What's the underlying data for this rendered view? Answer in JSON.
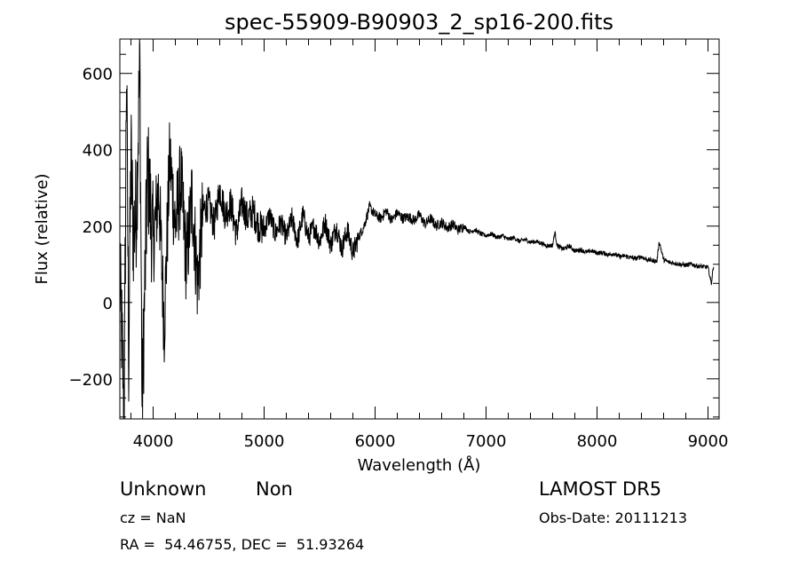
{
  "chart_data": {
    "type": "line",
    "title": "spec-55909-B90903_2_sp16-200.fits",
    "xlabel": "Wavelength (Å)",
    "ylabel": "Flux (relative)",
    "xlim": [
      3700,
      9100
    ],
    "ylim": [
      -305,
      690
    ],
    "x_ticks": [
      4000,
      5000,
      6000,
      7000,
      8000,
      9000
    ],
    "y_ticks": [
      -200,
      0,
      200,
      400,
      600
    ],
    "grid": false,
    "line_color": "#000000",
    "series": [
      {
        "x": [
          3700,
          3740,
          3760,
          3780,
          3800,
          3820,
          3850,
          3880,
          3900,
          3950,
          4000,
          4050,
          4100,
          4150,
          4200,
          4250,
          4300,
          4350,
          4400,
          4450,
          4500,
          4550,
          4600,
          4650,
          4700,
          4750,
          4800,
          4850,
          4900,
          4950,
          5000,
          5050,
          5100,
          5150,
          5200,
          5250,
          5300,
          5350,
          5400,
          5450,
          5500,
          5550,
          5600,
          5650,
          5700,
          5750,
          5800,
          5850,
          5900,
          5950,
          6000,
          6050,
          6100,
          6150,
          6200,
          6250,
          6300,
          6350,
          6400,
          6450,
          6500,
          6550,
          6600,
          6650,
          6700,
          6750,
          6800,
          6850,
          6900,
          6950,
          7000,
          7050,
          7100,
          7150,
          7200,
          7250,
          7300,
          7350,
          7400,
          7450,
          7500,
          7550,
          7600,
          7620,
          7640,
          7660,
          7700,
          7750,
          7800,
          7850,
          7900,
          7950,
          8000,
          8050,
          8100,
          8150,
          8200,
          8250,
          8300,
          8350,
          8400,
          8450,
          8500,
          8540,
          8560,
          8600,
          8650,
          8700,
          8750,
          8800,
          8850,
          8900,
          8950,
          9000,
          9030,
          9050
        ],
        "y": [
          60,
          -280,
          630,
          -150,
          400,
          180,
          250,
          640,
          -270,
          350,
          150,
          300,
          -60,
          380,
          200,
          320,
          100,
          280,
          50,
          240,
          260,
          200,
          300,
          230,
          260,
          180,
          260,
          220,
          240,
          200,
          190,
          230,
          180,
          210,
          170,
          220,
          160,
          230,
          170,
          200,
          160,
          210,
          150,
          200,
          140,
          190,
          130,
          170,
          200,
          250,
          230,
          220,
          240,
          215,
          235,
          220,
          225,
          215,
          230,
          205,
          220,
          200,
          210,
          195,
          205,
          190,
          200,
          185,
          190,
          180,
          175,
          180,
          170,
          175,
          165,
          170,
          160,
          165,
          158,
          160,
          155,
          148,
          150,
          185,
          150,
          145,
          140,
          148,
          135,
          138,
          132,
          135,
          130,
          130,
          125,
          128,
          120,
          122,
          118,
          115,
          120,
          112,
          110,
          108,
          160,
          112,
          105,
          103,
          100,
          98,
          100,
          96,
          94,
          92,
          50,
          98
        ]
      }
    ]
  },
  "info": {
    "object_class": "Unknown",
    "object_subclass": "Non",
    "survey": "LAMOST DR5",
    "redshift": "cz = NaN",
    "obs_date": "Obs-Date: 20111213",
    "coords": "RA =  54.46755, DEC =  51.93264"
  }
}
